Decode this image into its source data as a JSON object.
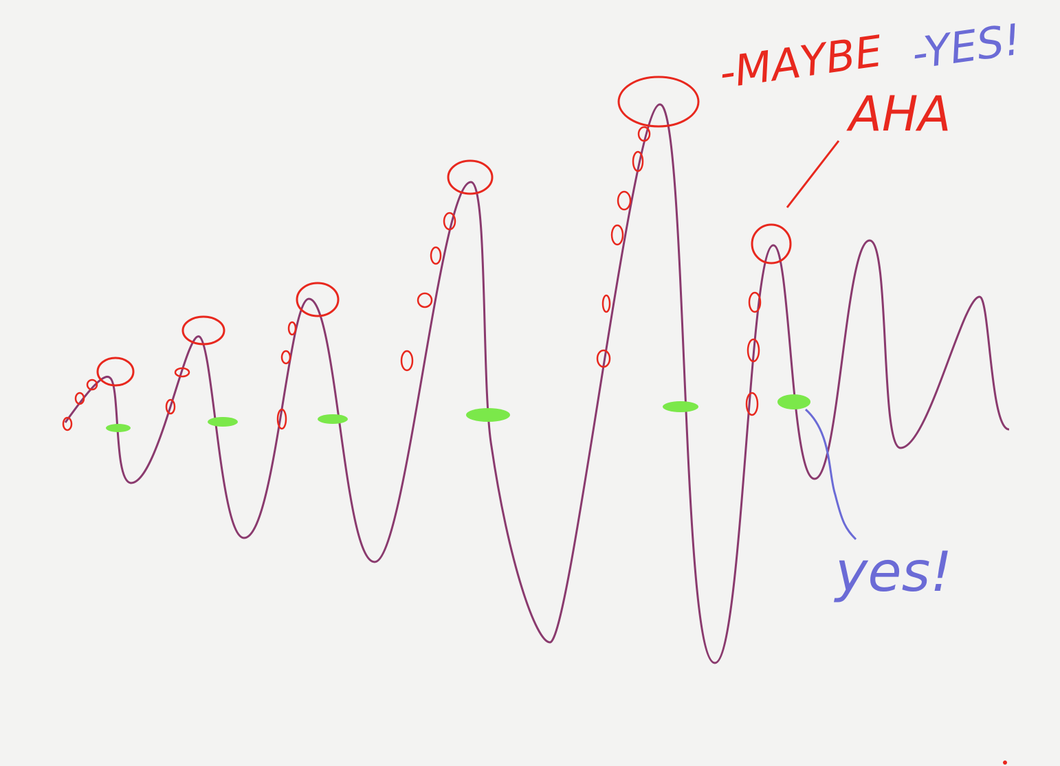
{
  "annotations": {
    "maybe": "-MAYBE",
    "maybe_yes": "-YES!",
    "aha": "AHA",
    "yes": "yes!"
  }
}
